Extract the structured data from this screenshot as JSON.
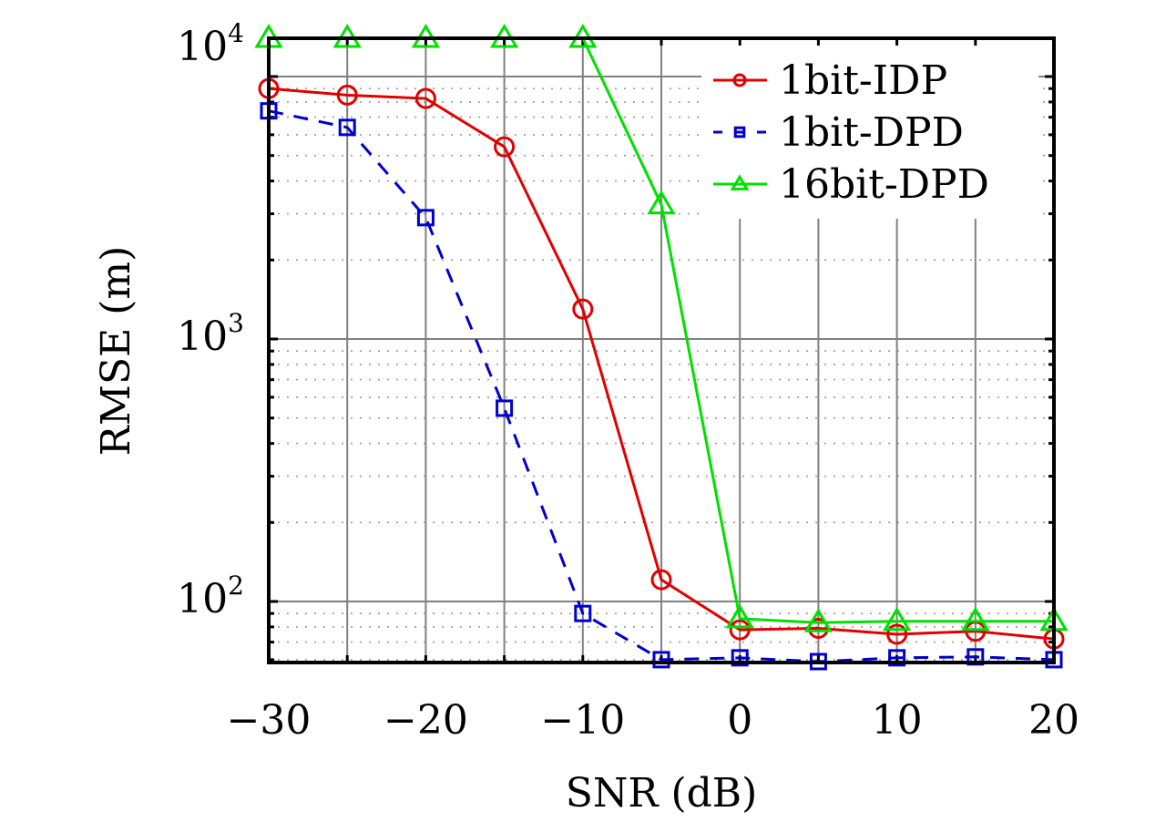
{
  "chart_data": {
    "type": "line",
    "title": "",
    "xlabel": "SNR (dB)",
    "ylabel": "RMSE (m)",
    "x": [
      -30,
      -25,
      -20,
      -15,
      -10,
      -5,
      0,
      5,
      10,
      15,
      20
    ],
    "xlim": [
      -30,
      20
    ],
    "xticks": [
      -30,
      -20,
      -10,
      0,
      10,
      20
    ],
    "xtick_labels": [
      "−30",
      "−20",
      "−10",
      "0",
      "10",
      "20"
    ],
    "yscale": "log",
    "ylim": [
      58,
      14000
    ],
    "yticks": [
      100,
      1000,
      10000
    ],
    "ytick_labels": [
      {
        "base": "10",
        "exp": "2"
      },
      {
        "base": "10",
        "exp": "3"
      },
      {
        "base": "10",
        "exp": "4"
      }
    ],
    "grid": true,
    "legend_position": "top-right",
    "series": [
      {
        "name": "1bit-IDP",
        "color": "#e00000",
        "marker": "circle",
        "linestyle": "solid",
        "values": [
          9000,
          8500,
          8250,
          5400,
          1300,
          121,
          78,
          79,
          75,
          77,
          72
        ]
      },
      {
        "name": "1bit-DPD",
        "color": "#0000cc",
        "marker": "square",
        "linestyle": "dashed",
        "values": [
          7400,
          6400,
          2900,
          545,
          90,
          60,
          61,
          59,
          61,
          61.5,
          60
        ]
      },
      {
        "name": "16bit-DPD",
        "color": "#00e000",
        "marker": "triangle",
        "linestyle": "solid",
        "values": [
          14000,
          14000,
          14000,
          14000,
          14000,
          3250,
          86,
          83,
          84,
          84,
          84
        ]
      }
    ]
  }
}
